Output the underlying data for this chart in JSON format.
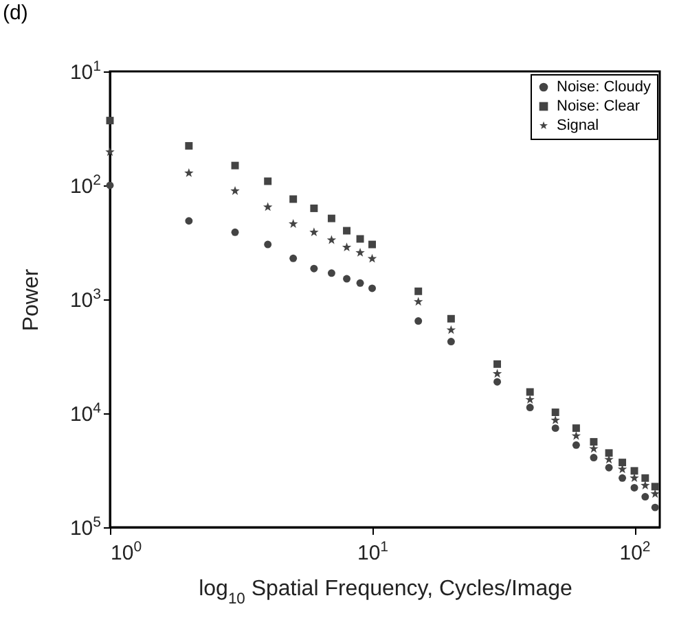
{
  "chart_data": {
    "type": "scatter",
    "title": "(d)",
    "xlabel": "log$_{10}$ Spatial Frequency, Cycles/Image",
    "ylabel": "Power",
    "log": "xy",
    "xlim": [
      1,
      125
    ],
    "xticks": [
      {
        "value": 1,
        "label": "10$^{0}$"
      },
      {
        "value": 10,
        "label": "10$^{1}$"
      },
      {
        "value": 100,
        "label": "10$^{2}$"
      }
    ],
    "ylim": [
      100000,
      10
    ],
    "yticks": [
      {
        "value": 10,
        "label": "10$^{1}$"
      },
      {
        "value": 100,
        "label": "10$^{2}$"
      },
      {
        "value": 1000,
        "label": "10$^{3}$"
      },
      {
        "value": 10000,
        "label": "10$^{4}$"
      },
      {
        "value": 100000,
        "label": "10$^{5}$"
      }
    ],
    "grid": false,
    "legend": "top right",
    "series": [
      {
        "name": "Noise: Cloudy",
        "color": "#444444",
        "marker": "circle",
        "x": [
          1,
          2,
          3,
          4,
          5,
          6,
          7,
          8,
          9,
          10,
          15,
          20,
          30,
          40,
          50,
          60,
          70,
          80,
          90,
          100,
          110,
          120
        ],
        "values": [
          100,
          205,
          258,
          330,
          437,
          537,
          589,
          660,
          720,
          800,
          1550,
          2350,
          5300,
          8900,
          13500,
          19000,
          24500,
          30000,
          37000,
          45000,
          54000,
          67000
        ]
      },
      {
        "name": "Noise: Clear",
        "color": "#444444",
        "marker": "square",
        "x": [
          1,
          2,
          3,
          4,
          5,
          6,
          7,
          8,
          9,
          10,
          15,
          20,
          30,
          40,
          50,
          60,
          70,
          80,
          90,
          100,
          110,
          120
        ],
        "values": [
          27,
          45,
          67,
          92,
          132,
          159,
          195,
          250,
          295,
          330,
          850,
          1480,
          3700,
          6500,
          9800,
          13500,
          17800,
          22300,
          27000,
          32000,
          37000,
          44000
        ]
      },
      {
        "name": "Signal",
        "color": "#444444",
        "marker": "star",
        "x": [
          1,
          2,
          3,
          4,
          5,
          6,
          7,
          8,
          9,
          10,
          15,
          20,
          30,
          40,
          50,
          60,
          70,
          80,
          90,
          100,
          110,
          120
        ],
        "values": [
          51,
          78,
          112,
          155,
          218,
          258,
          302,
          350,
          390,
          440,
          1050,
          1860,
          4500,
          7600,
          11500,
          15800,
          20500,
          25500,
          31000,
          37000,
          43000,
          51000
        ]
      }
    ]
  }
}
